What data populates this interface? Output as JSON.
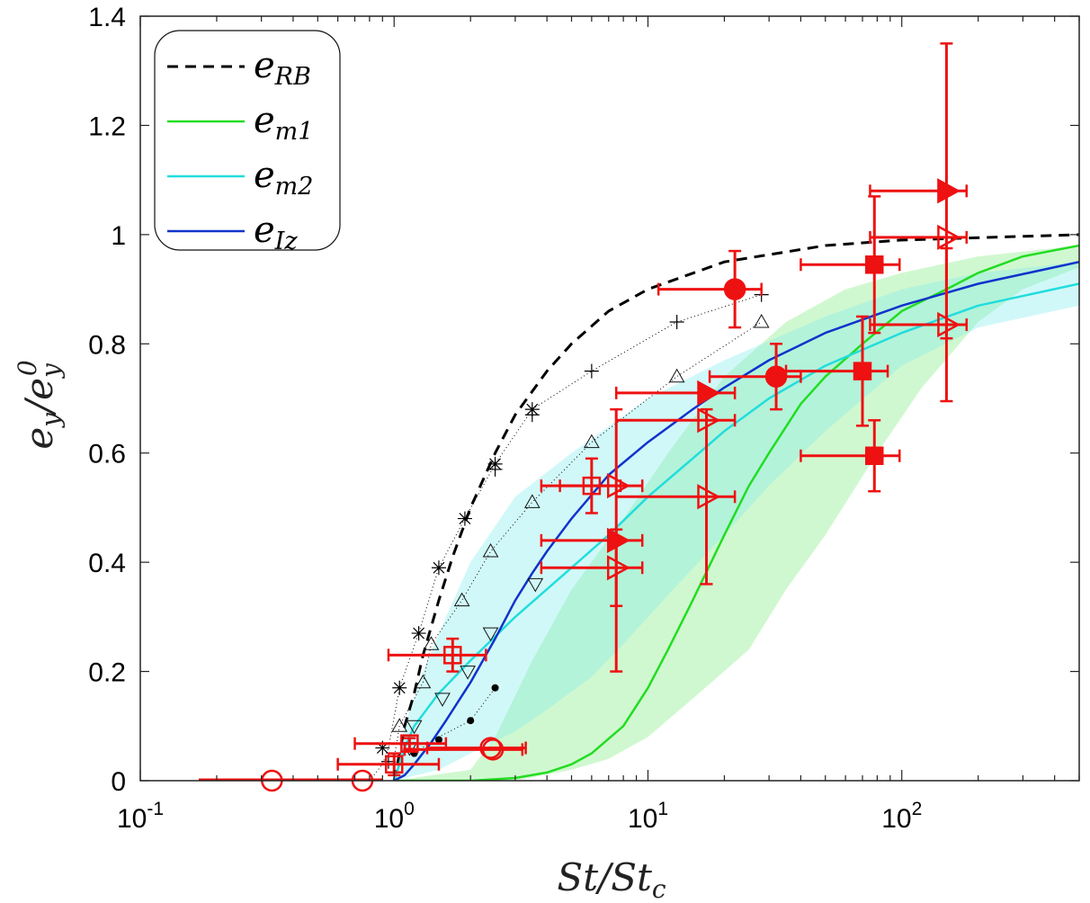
{
  "chart_data": {
    "type": "line",
    "xscale": "log",
    "xlim": [
      0.1,
      500
    ],
    "ylim": [
      0,
      1.4
    ],
    "grid": false,
    "legend_placement": "top-left",
    "xlabel": "St/Stc",
    "ylabel": "ey/ey0",
    "y_ticks": [
      "0",
      "0.2",
      "0.4",
      "0.6",
      "0.8",
      "1",
      "1.2",
      "1.4"
    ],
    "x_ticks": [
      {
        "value": 0.1,
        "base": "10",
        "exp": "-1"
      },
      {
        "value": 1,
        "base": "10",
        "exp": "0"
      },
      {
        "value": 10,
        "base": "10",
        "exp": "1"
      },
      {
        "value": 100,
        "base": "10",
        "exp": "2"
      }
    ],
    "legend": [
      {
        "key": "rb",
        "base": "e",
        "sub": "RB",
        "color": "#000000",
        "dash": "12,8"
      },
      {
        "key": "m1",
        "base": "e",
        "sub": "m1",
        "color": "#22dd22",
        "dash": ""
      },
      {
        "key": "m2",
        "base": "e",
        "sub": "m2",
        "color": "#22dddd",
        "dash": ""
      },
      {
        "key": "iz",
        "base": "e",
        "sub": "Iz",
        "color": "#1133cc",
        "dash": ""
      }
    ],
    "bands": [
      {
        "key": "m1-band",
        "color": "#90ee90",
        "opacity": 0.42,
        "upper": [
          [
            1.0,
            0.0
          ],
          [
            2.0,
            0.02
          ],
          [
            2.5,
            0.08
          ],
          [
            3.5,
            0.22
          ],
          [
            5,
            0.35
          ],
          [
            8,
            0.48
          ],
          [
            12,
            0.6
          ],
          [
            20,
            0.74
          ],
          [
            35,
            0.84
          ],
          [
            60,
            0.9
          ],
          [
            100,
            0.93
          ],
          [
            200,
            0.96
          ],
          [
            500,
            0.98
          ]
        ],
        "lower": [
          [
            500,
            0.94
          ],
          [
            300,
            0.9
          ],
          [
            200,
            0.84
          ],
          [
            120,
            0.72
          ],
          [
            80,
            0.6
          ],
          [
            50,
            0.45
          ],
          [
            35,
            0.35
          ],
          [
            25,
            0.24
          ],
          [
            15,
            0.15
          ],
          [
            10,
            0.08
          ],
          [
            7,
            0.04
          ],
          [
            5,
            0.02
          ],
          [
            3,
            0.0
          ],
          [
            1.0,
            0.0
          ]
        ]
      },
      {
        "key": "m2-band",
        "color": "#7fecec",
        "opacity": 0.36,
        "upper": [
          [
            1.0,
            0.0
          ],
          [
            1.1,
            0.1
          ],
          [
            1.3,
            0.2
          ],
          [
            1.6,
            0.3
          ],
          [
            2,
            0.4
          ],
          [
            3,
            0.52
          ],
          [
            5,
            0.6
          ],
          [
            10,
            0.7
          ],
          [
            20,
            0.77
          ],
          [
            50,
            0.85
          ],
          [
            100,
            0.9
          ],
          [
            200,
            0.93
          ],
          [
            500,
            0.95
          ]
        ],
        "lower": [
          [
            500,
            0.87
          ],
          [
            200,
            0.83
          ],
          [
            100,
            0.76
          ],
          [
            50,
            0.64
          ],
          [
            30,
            0.54
          ],
          [
            20,
            0.45
          ],
          [
            12,
            0.34
          ],
          [
            8,
            0.25
          ],
          [
            6,
            0.19
          ],
          [
            4,
            0.13
          ],
          [
            3,
            0.09
          ],
          [
            2,
            0.05
          ],
          [
            1.5,
            0.02
          ],
          [
            1.0,
            0.0
          ]
        ]
      }
    ],
    "series": [
      {
        "key": "rb",
        "color": "#000000",
        "width": 3,
        "dash": "12,8",
        "points": [
          [
            1.0,
            0.0
          ],
          [
            1.05,
            0.05
          ],
          [
            1.1,
            0.1
          ],
          [
            1.2,
            0.16
          ],
          [
            1.3,
            0.23
          ],
          [
            1.5,
            0.33
          ],
          [
            1.7,
            0.41
          ],
          [
            2.0,
            0.5
          ],
          [
            2.5,
            0.6
          ],
          [
            3,
            0.67
          ],
          [
            4,
            0.75
          ],
          [
            5,
            0.8
          ],
          [
            7,
            0.86
          ],
          [
            10,
            0.9
          ],
          [
            20,
            0.95
          ],
          [
            50,
            0.98
          ],
          [
            100,
            0.99
          ],
          [
            500,
            1.0
          ]
        ]
      },
      {
        "key": "m1",
        "color": "#22dd22",
        "width": 2.5,
        "dash": "",
        "points": [
          [
            1.0,
            0.0
          ],
          [
            2.0,
            0.0
          ],
          [
            3.0,
            0.005
          ],
          [
            4,
            0.015
          ],
          [
            5,
            0.03
          ],
          [
            6,
            0.05
          ],
          [
            8,
            0.1
          ],
          [
            10,
            0.17
          ],
          [
            12,
            0.24
          ],
          [
            15,
            0.33
          ],
          [
            20,
            0.45
          ],
          [
            25,
            0.54
          ],
          [
            30,
            0.6
          ],
          [
            40,
            0.69
          ],
          [
            50,
            0.74
          ],
          [
            70,
            0.8
          ],
          [
            100,
            0.86
          ],
          [
            150,
            0.9
          ],
          [
            200,
            0.93
          ],
          [
            300,
            0.96
          ],
          [
            500,
            0.98
          ]
        ]
      },
      {
        "key": "m2",
        "color": "#22dddd",
        "width": 2.5,
        "dash": "",
        "points": [
          [
            1.0,
            0.0
          ],
          [
            1.1,
            0.06
          ],
          [
            1.2,
            0.1
          ],
          [
            1.5,
            0.16
          ],
          [
            2,
            0.22
          ],
          [
            3,
            0.3
          ],
          [
            5,
            0.39
          ],
          [
            7,
            0.45
          ],
          [
            10,
            0.52
          ],
          [
            15,
            0.59
          ],
          [
            20,
            0.64
          ],
          [
            30,
            0.7
          ],
          [
            50,
            0.76
          ],
          [
            100,
            0.82
          ],
          [
            200,
            0.87
          ],
          [
            500,
            0.91
          ]
        ]
      },
      {
        "key": "iz",
        "color": "#1133cc",
        "width": 2.5,
        "dash": "",
        "points": [
          [
            1.0,
            0.0
          ],
          [
            1.1,
            0.01
          ],
          [
            1.2,
            0.03
          ],
          [
            1.4,
            0.07
          ],
          [
            1.6,
            0.11
          ],
          [
            2.0,
            0.18
          ],
          [
            2.5,
            0.26
          ],
          [
            3,
            0.33
          ],
          [
            3.5,
            0.38
          ],
          [
            4,
            0.42
          ],
          [
            5,
            0.48
          ],
          [
            7,
            0.56
          ],
          [
            10,
            0.62
          ],
          [
            15,
            0.68
          ],
          [
            20,
            0.72
          ],
          [
            30,
            0.77
          ],
          [
            50,
            0.82
          ],
          [
            100,
            0.87
          ],
          [
            200,
            0.91
          ],
          [
            500,
            0.95
          ]
        ]
      },
      {
        "key": "dot-star",
        "color": "#000000",
        "width": 1,
        "dash": "1,3",
        "points": [
          [
            0.8,
            0.0
          ],
          [
            0.9,
            0.03
          ],
          [
            0.95,
            0.06
          ],
          [
            1.05,
            0.17
          ],
          [
            1.25,
            0.27
          ],
          [
            1.5,
            0.39
          ],
          [
            1.9,
            0.48
          ],
          [
            2.5,
            0.58
          ],
          [
            3.5,
            0.68
          ],
          [
            6,
            0.75
          ],
          [
            13,
            0.84
          ],
          [
            28,
            0.89
          ]
        ]
      },
      {
        "key": "dot-tri",
        "color": "#000000",
        "width": 1,
        "dash": "1,3",
        "points": [
          [
            1.0,
            0.04
          ],
          [
            1.05,
            0.1
          ],
          [
            1.3,
            0.18
          ],
          [
            1.4,
            0.25
          ],
          [
            1.85,
            0.33
          ],
          [
            2.4,
            0.42
          ],
          [
            3.5,
            0.51
          ],
          [
            6,
            0.62
          ],
          [
            13,
            0.74
          ],
          [
            28,
            0.84
          ]
        ]
      },
      {
        "key": "dot-dot",
        "color": "#000000",
        "width": 1,
        "dash": "1,3",
        "points": [
          [
            1.2,
            0.05
          ],
          [
            1.5,
            0.08
          ],
          [
            2.0,
            0.11
          ],
          [
            2.5,
            0.17
          ]
        ]
      },
      {
        "key": "red-base",
        "color": "#ee1111",
        "width": 2.5,
        "dash": "",
        "points": [
          [
            0.17,
            0.002
          ],
          [
            0.9,
            0.002
          ]
        ]
      }
    ],
    "black_markers": [
      {
        "shape": "asterisk",
        "points": [
          [
            0.9,
            0.06
          ],
          [
            1.05,
            0.17
          ],
          [
            1.25,
            0.27
          ],
          [
            1.5,
            0.39
          ],
          [
            1.9,
            0.48
          ],
          [
            2.5,
            0.58
          ],
          [
            3.5,
            0.68
          ]
        ]
      },
      {
        "shape": "plus",
        "points": [
          [
            0.95,
            0.035
          ],
          [
            6,
            0.75
          ],
          [
            13,
            0.84
          ],
          [
            28,
            0.89
          ],
          [
            3.5,
            0.67
          ],
          [
            2.5,
            0.57
          ]
        ]
      },
      {
        "shape": "triangle-up",
        "points": [
          [
            1.05,
            0.1
          ],
          [
            1.3,
            0.18
          ],
          [
            1.4,
            0.25
          ],
          [
            1.85,
            0.33
          ],
          [
            2.4,
            0.42
          ],
          [
            3.5,
            0.51
          ],
          [
            6,
            0.62
          ],
          [
            13,
            0.74
          ],
          [
            28,
            0.84
          ]
        ]
      },
      {
        "shape": "triangle-down",
        "points": [
          [
            1.15,
            0.06
          ],
          [
            1.2,
            0.1
          ],
          [
            1.55,
            0.15
          ],
          [
            1.95,
            0.2
          ],
          [
            2.4,
            0.27
          ],
          [
            3.6,
            0.36
          ]
        ]
      },
      {
        "shape": "dot",
        "points": [
          [
            1.2,
            0.05
          ],
          [
            1.5,
            0.075
          ],
          [
            2.0,
            0.11
          ],
          [
            2.5,
            0.17
          ]
        ]
      }
    ],
    "red_points": [
      {
        "shape": "circle-open",
        "x": 0.33,
        "y": 0.0,
        "xerr": [
          0.33,
          0.33
        ],
        "yerr": [
          0,
          0
        ]
      },
      {
        "shape": "circle-open",
        "x": 0.75,
        "y": 0.0,
        "xerr": [
          0.75,
          0.75
        ],
        "yerr": [
          0,
          0
        ]
      },
      {
        "shape": "circle-open",
        "x": 2.4,
        "y": 0.06,
        "xerr": [
          1.35,
          3.3
        ],
        "yerr": [
          0,
          0
        ]
      },
      {
        "shape": "circle-open",
        "x": 2.45,
        "y": 0.057,
        "xerr": [
          1.1,
          3.2
        ],
        "yerr": [
          0,
          0
        ]
      },
      {
        "shape": "square-open",
        "x": 1.0,
        "y": 0.03,
        "xerr": [
          0.6,
          1.5
        ],
        "yerr": [
          0.02,
          0.02
        ]
      },
      {
        "shape": "square-open",
        "x": 1.15,
        "y": 0.068,
        "xerr": [
          0.7,
          1.6
        ],
        "yerr": [
          0.01,
          0.01
        ]
      },
      {
        "shape": "square-open",
        "x": 1.7,
        "y": 0.23,
        "xerr": [
          0.95,
          2.3
        ],
        "yerr": [
          0.03,
          0.03
        ]
      },
      {
        "shape": "square-open",
        "x": 6.0,
        "y": 0.54,
        "xerr": [
          3.8,
          7.8
        ],
        "yerr": [
          0.05,
          0.05
        ]
      },
      {
        "shape": "triangle-right-open",
        "x": 7.5,
        "y": 0.54,
        "xerr": [
          4.5,
          9.5
        ],
        "yerr": [
          0.0,
          0.0
        ]
      },
      {
        "shape": "triangle-right-open",
        "x": 7.5,
        "y": 0.39,
        "xerr": [
          3.8,
          9.5
        ],
        "yerr": [
          0.07,
          0.07
        ]
      },
      {
        "shape": "triangle-right-open",
        "x": 17,
        "y": 0.66,
        "xerr": [
          7.5,
          22
        ],
        "yerr": [
          0.0,
          0.0
        ]
      },
      {
        "shape": "triangle-right-open",
        "x": 17,
        "y": 0.52,
        "xerr": [
          7.5,
          22
        ],
        "yerr": [
          0.16,
          0.16
        ]
      },
      {
        "shape": "triangle-right-open",
        "x": 150,
        "y": 0.995,
        "xerr": [
          75,
          180
        ],
        "yerr": [
          0.0,
          0.0
        ]
      },
      {
        "shape": "triangle-right-open",
        "x": 150,
        "y": 0.835,
        "xerr": [
          75,
          180
        ],
        "yerr": [
          0.14,
          0.14
        ]
      },
      {
        "shape": "triangle-right-filled",
        "x": 7.5,
        "y": 0.44,
        "xerr": [
          3.8,
          9.5
        ],
        "yerr": [
          0.24,
          0.24
        ]
      },
      {
        "shape": "triangle-right-filled",
        "x": 17,
        "y": 0.71,
        "xerr": [
          7.5,
          22
        ],
        "yerr": [
          0.0,
          0.0
        ]
      },
      {
        "shape": "triangle-right-filled",
        "x": 150,
        "y": 1.08,
        "xerr": [
          75,
          180
        ],
        "yerr": [
          0.27,
          0.27
        ]
      },
      {
        "shape": "circle-filled",
        "x": 22,
        "y": 0.9,
        "xerr": [
          11,
          28
        ],
        "yerr": [
          0.07,
          0.07
        ]
      },
      {
        "shape": "circle-filled",
        "x": 32,
        "y": 0.74,
        "xerr": [
          17.5,
          40
        ],
        "yerr": [
          0.06,
          0.06
        ]
      },
      {
        "shape": "square-filled",
        "x": 78,
        "y": 0.945,
        "xerr": [
          40,
          98
        ],
        "yerr": [
          0.125,
          0.125
        ]
      },
      {
        "shape": "square-filled",
        "x": 70,
        "y": 0.75,
        "xerr": [
          35,
          88
        ],
        "yerr": [
          0.1,
          0.1
        ]
      },
      {
        "shape": "square-filled",
        "x": 78,
        "y": 0.595,
        "xerr": [
          40,
          98
        ],
        "yerr": [
          0.065,
          0.065
        ]
      }
    ]
  }
}
